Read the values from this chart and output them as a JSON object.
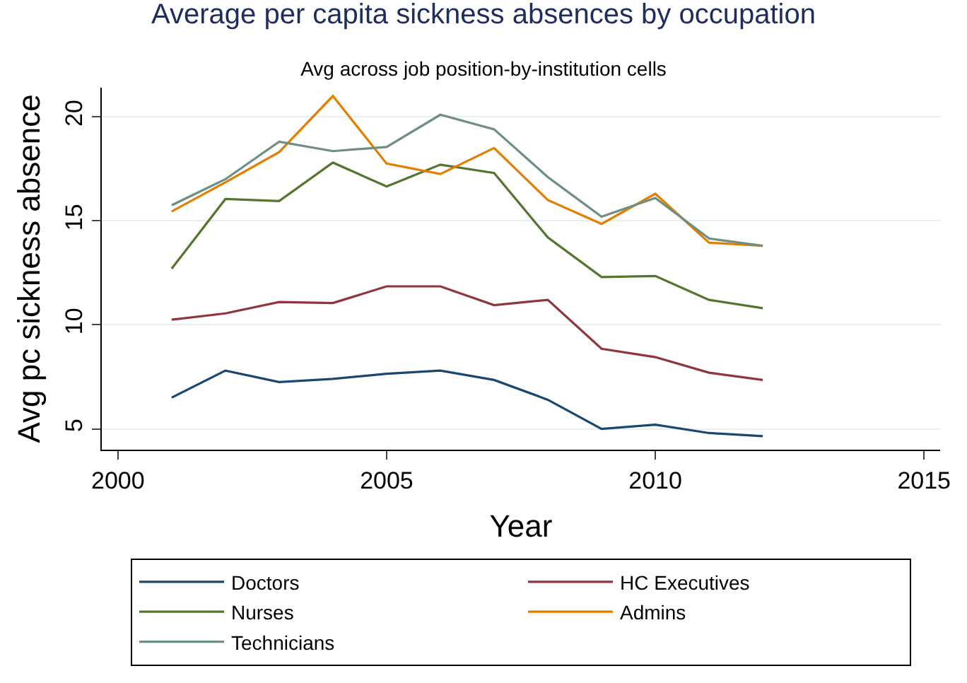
{
  "chart_data": {
    "type": "line",
    "title": "Average per capita sickness absences by occupation",
    "subtitle": "Avg across job position-by-institution cells",
    "xlabel": "Year",
    "ylabel": "Avg pc sickness absence",
    "x": [
      2001,
      2002,
      2003,
      2004,
      2005,
      2006,
      2007,
      2008,
      2009,
      2010,
      2011,
      2012
    ],
    "series": [
      {
        "name": "Doctors",
        "color": "#1a476f",
        "values": [
          6.5,
          7.8,
          7.25,
          7.4,
          7.65,
          7.8,
          7.35,
          6.4,
          5.0,
          5.2,
          4.8,
          4.65
        ]
      },
      {
        "name": "HC Executives",
        "color": "#90353b",
        "values": [
          10.25,
          10.55,
          11.1,
          11.05,
          11.85,
          11.85,
          10.95,
          11.2,
          8.85,
          8.45,
          7.7,
          7.35
        ]
      },
      {
        "name": "Nurses",
        "color": "#55752f",
        "values": [
          12.7,
          16.05,
          15.95,
          17.8,
          16.65,
          17.7,
          17.3,
          14.2,
          12.3,
          12.35,
          11.2,
          10.8
        ]
      },
      {
        "name": "Admins",
        "color": "#e37e00",
        "values": [
          15.45,
          16.85,
          18.3,
          21.0,
          17.75,
          17.25,
          18.5,
          16.0,
          14.85,
          16.3,
          13.95,
          13.8
        ]
      },
      {
        "name": "Technicians",
        "color": "#6e8e84",
        "values": [
          15.75,
          17.0,
          18.8,
          18.35,
          18.55,
          20.1,
          19.4,
          17.1,
          15.2,
          16.1,
          14.15,
          13.8
        ]
      }
    ],
    "xlim": [
      1999.7,
      2015.3
    ],
    "xticks": [
      2000,
      2005,
      2010,
      2015
    ],
    "ylim": [
      4,
      21.4
    ],
    "yticks": [
      5,
      10,
      15,
      20
    ],
    "grid": "y",
    "legend": "bottom",
    "marker": "none",
    "line_style": "solid"
  }
}
